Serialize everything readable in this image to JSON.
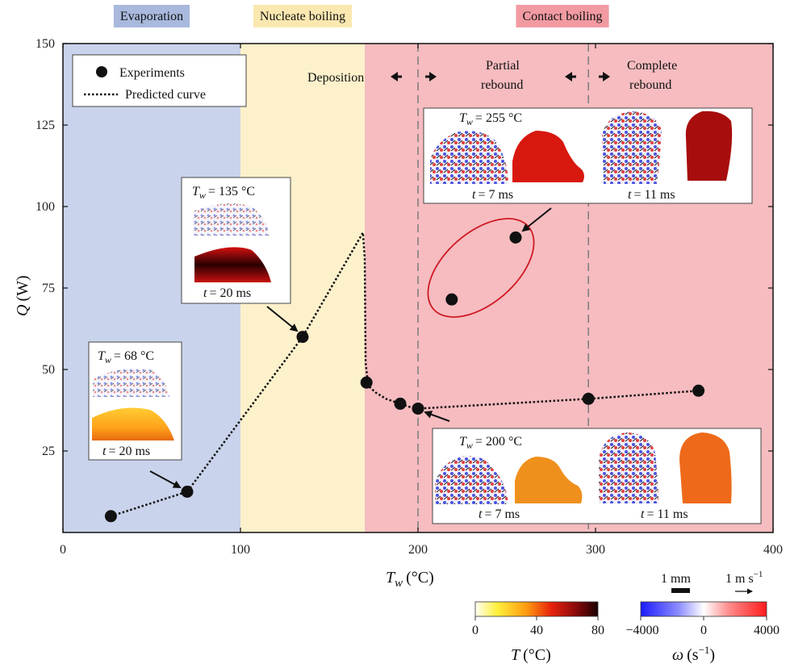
{
  "chart_data": {
    "type": "scatter",
    "xlabel_main": "T",
    "xlabel_sub": "w",
    "xlabel_unit": "(°C)",
    "ylabel_main": "Q",
    "ylabel_unit": "(W)",
    "xlim": [
      0,
      400
    ],
    "ylim": [
      0,
      150
    ],
    "x_ticks": [
      0,
      100,
      200,
      300,
      400
    ],
    "y_ticks": [
      25,
      50,
      75,
      100,
      125,
      150
    ],
    "regions": [
      {
        "label": "Evaporation",
        "x0": 0,
        "x1": 100,
        "color": "#c9d3eb",
        "label_bg": "#a9b9dd"
      },
      {
        "label": "Nucleate boiling",
        "x0": 100,
        "x1": 170,
        "color": "#fdf1cb",
        "label_bg": "#fbe8b0"
      },
      {
        "label": "Contact boiling",
        "x0": 170,
        "x1": 400,
        "color": "#f6bcc0",
        "label_bg": "#f29aa2"
      }
    ],
    "dashed_lines_x": [
      200,
      296
    ],
    "series": [
      {
        "name": "Experiments",
        "kind": "points",
        "points": [
          [
            27,
            5
          ],
          [
            70,
            12.5
          ],
          [
            135,
            60
          ],
          [
            171,
            46
          ],
          [
            190,
            39.5
          ],
          [
            200,
            38
          ],
          [
            219,
            71.5
          ],
          [
            255,
            90.5
          ],
          [
            296,
            41
          ],
          [
            358,
            43.5
          ]
        ]
      },
      {
        "name": "Predicted curve",
        "kind": "dotted",
        "points": [
          [
            27,
            5
          ],
          [
            70,
            12.5
          ],
          [
            135,
            60
          ],
          [
            169,
            92
          ],
          [
            170,
            84
          ],
          [
            170.5,
            52
          ],
          [
            172,
            45
          ],
          [
            176,
            43
          ],
          [
            182,
            41
          ],
          [
            190,
            39.5
          ],
          [
            197,
            38.2
          ],
          [
            200,
            38
          ],
          [
            296,
            41
          ],
          [
            358,
            43.5
          ]
        ]
      }
    ],
    "legend": [
      "Experiments",
      "Predicted curve"
    ],
    "legend_position": "top-left",
    "regime_notes": [
      "Deposition",
      "Partial",
      "rebound",
      "Complete",
      "rebound"
    ],
    "insets": [
      {
        "tw_value": "= 68 °C",
        "t_label": "= 20 ms"
      },
      {
        "tw_value": "= 135 °C",
        "t_label": "= 20 ms"
      },
      {
        "tw_value": "= 255 °C",
        "t_label_1": "= 7 ms",
        "t_label_2": "= 11 ms"
      },
      {
        "tw_value": "= 200 °C",
        "t_label_1": "= 7 ms",
        "t_label_2": "= 11 ms"
      }
    ],
    "scale_bars": {
      "length": "1 mm",
      "velocity": "1 m s",
      "velocity_exp": "−1"
    },
    "colorbar_T": {
      "ticks": [
        "0",
        "40",
        "80"
      ],
      "label": "T",
      "unit": "(°C)"
    },
    "colorbar_omega": {
      "ticks": [
        "−4000",
        "0",
        "4000"
      ],
      "label": "ω",
      "unit": "(s",
      "unit_exp": "−1",
      "unit_close": ")"
    }
  }
}
